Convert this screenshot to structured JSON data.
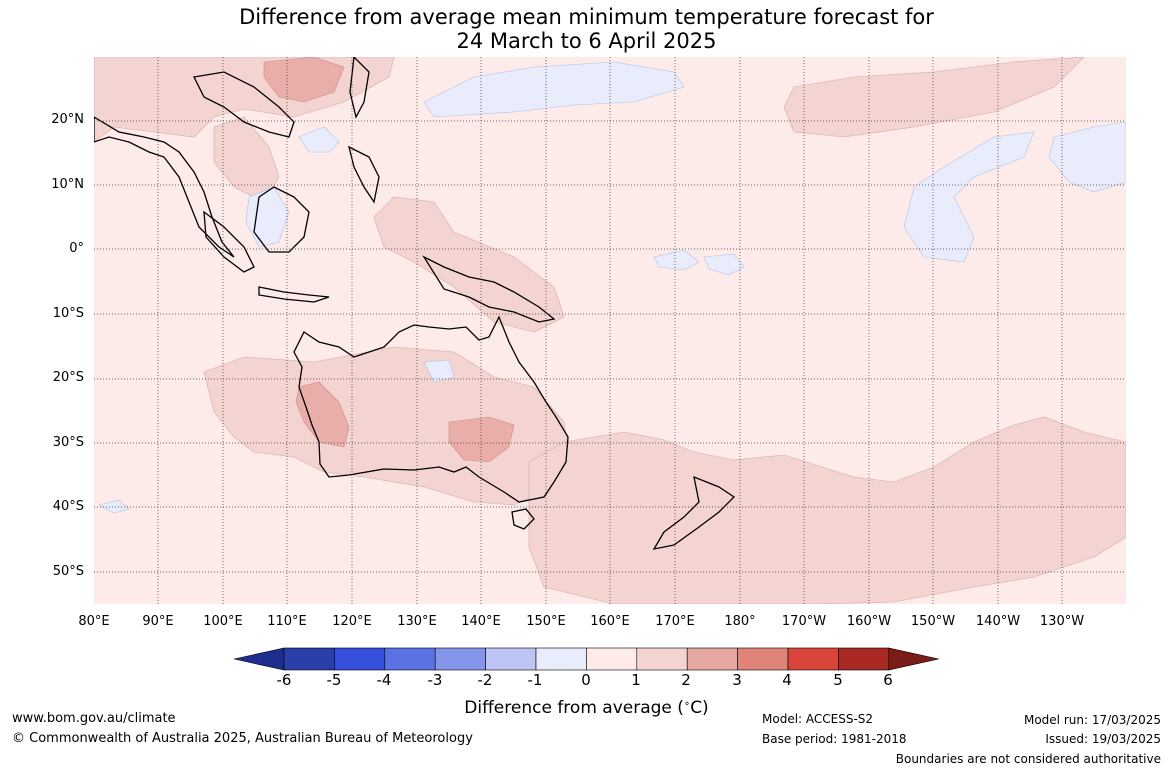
{
  "title": {
    "line1": "Difference from average mean minimum temperature forecast for",
    "line2": "24 March to 6 April 2025"
  },
  "map": {
    "lat_ticks": [
      "20°N",
      "10°N",
      "0°",
      "10°S",
      "20°S",
      "30°S",
      "40°S",
      "50°S"
    ],
    "lon_ticks": [
      "80°E",
      "90°E",
      "100°E",
      "110°E",
      "120°E",
      "130°E",
      "140°E",
      "150°E",
      "160°E",
      "170°E",
      "180°",
      "170°W",
      "160°W",
      "150°W",
      "140°W",
      "130°W"
    ]
  },
  "colorbar": {
    "ticks": [
      "-6",
      "-5",
      "-4",
      "-3",
      "-2",
      "-1",
      "0",
      "1",
      "2",
      "3",
      "4",
      "5",
      "6"
    ],
    "label": "Difference from average (",
    "label_unit": "C)",
    "colors": [
      "#1e2e8e",
      "#2b3faa",
      "#3450dc",
      "#5a72e2",
      "#8596ea",
      "#bcc5f3",
      "#e8ecfb",
      "#fcebe9",
      "#f4d4d0",
      "#e8a8a2",
      "#e08378",
      "#d9453a",
      "#a92a22",
      "#7a1d18"
    ]
  },
  "footer": {
    "website": "www.bom.gov.au/climate",
    "copyright": "© Commonwealth of Australia 2025, Australian Bureau of Meteorology",
    "model": "Model: ACCESS-S2",
    "base_period": "Base period: 1981-2018",
    "model_run": "Model run: 17/03/2025",
    "issued": "Issued: 19/03/2025",
    "disclaimer": "Boundaries are not considered authoritative"
  }
}
